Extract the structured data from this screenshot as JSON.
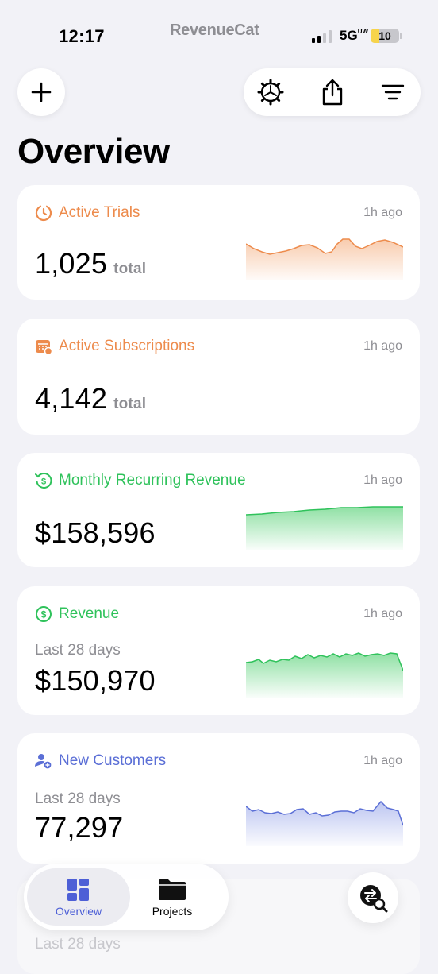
{
  "status": {
    "time": "12:17",
    "brand": "RevenueCat",
    "network": "5G",
    "network_sup": "UW",
    "battery": "10",
    "battery_level": 0.1
  },
  "header": {
    "title": "Overview",
    "buttons": [
      "plus-icon",
      "settings-gear-icon",
      "share-icon",
      "filter-lines-icon"
    ]
  },
  "colors": {
    "orange": "#ed8b4c",
    "green": "#2fc25b",
    "blue": "#5b6fd6",
    "background": "#f2f2f7"
  },
  "cards": [
    {
      "title": "Active Trials",
      "time": "1h ago",
      "value": "1,025",
      "unit": "total",
      "icon": "timer-icon"
    },
    {
      "title": "Active Subscriptions",
      "time": "1h ago",
      "value": "4,142",
      "unit": "total",
      "icon": "calendar-icon"
    },
    {
      "title": "Monthly Recurring Revenue",
      "time": "1h ago",
      "value": "$158,596",
      "icon": "recurring-dollar-icon"
    },
    {
      "title": "Revenue",
      "time": "1h ago",
      "subtitle": "Last 28 days",
      "value": "$150,970",
      "icon": "dollar-circle-icon"
    },
    {
      "title": "New Customers",
      "time": "1h ago",
      "subtitle": "Last 28 days",
      "value": "77,297",
      "icon": "add-person-icon"
    }
  ],
  "tabs": [
    {
      "label": "Overview",
      "icon": "grid-icon",
      "active": true
    },
    {
      "label": "Projects",
      "icon": "folder-icon",
      "active": false
    }
  ],
  "footer_ghost": "Last 28 days"
}
